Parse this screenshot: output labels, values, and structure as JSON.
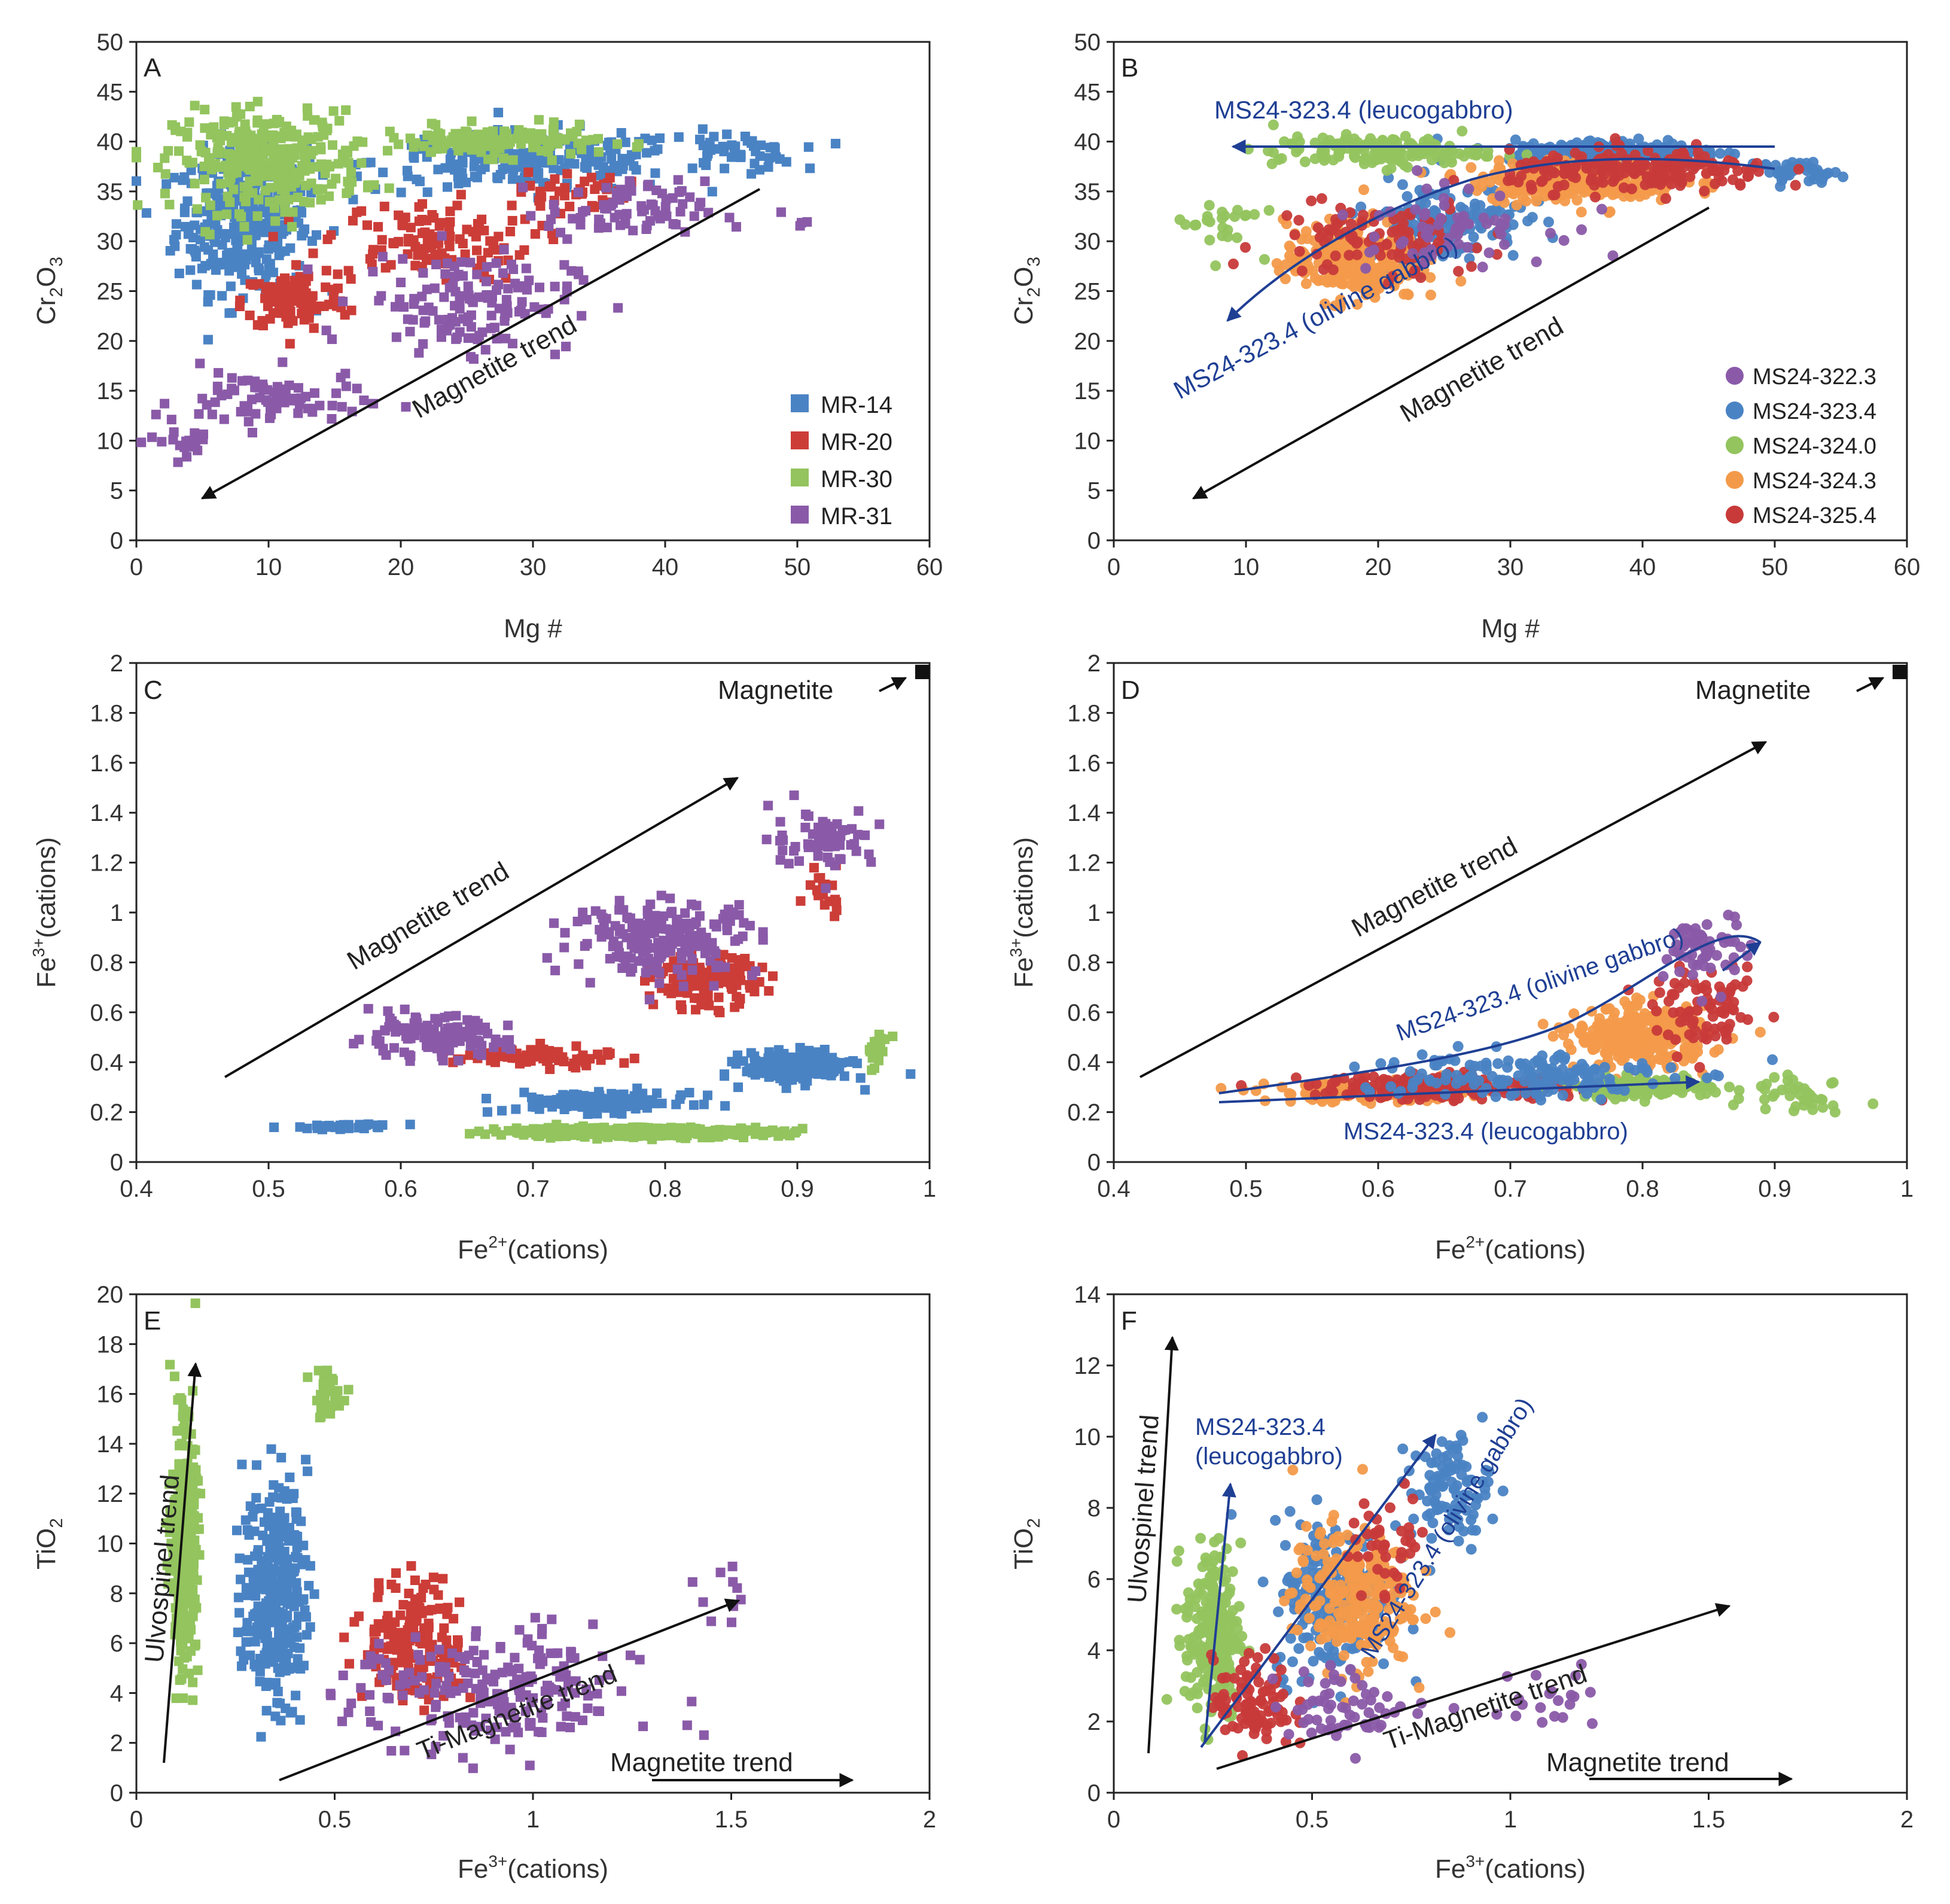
{
  "colors": {
    "MR-14": "#4a83c4",
    "MR-20": "#cc3d38",
    "MR-30": "#93c45e",
    "MR-31": "#8a5aa8",
    "MS24-322.3": "#8a5aa8",
    "MS24-323.4": "#4a83c4",
    "MS24-324.0": "#93c45e",
    "MS24-324.3": "#f39a4a",
    "MS24-325.4": "#c83a3a",
    "annotation_blue": "#1f3f94",
    "black": "#111111"
  },
  "chart_data": [
    {
      "type": "scatter",
      "panel": "A",
      "xlabel": "Mg #",
      "ylabel": "Cr2O3",
      "xlim": [
        0,
        60
      ],
      "ylim": [
        0,
        50
      ],
      "xticks": [
        0,
        10,
        20,
        30,
        40,
        50,
        60
      ],
      "yticks": [
        0,
        5,
        10,
        15,
        20,
        25,
        30,
        35,
        40,
        45,
        50
      ],
      "legend": [
        "MR-14",
        "MR-20",
        "MR-30",
        "MR-31"
      ],
      "legend_position": "bottom-right",
      "marker": "square",
      "annotations": [
        {
          "text": "Magnetite trend",
          "color": "black"
        }
      ],
      "series": [
        {
          "name": "MR-14",
          "clusters": [
            [
              8,
              32,
              5,
              7,
              320
            ],
            [
              30,
              38,
              12,
              3,
              200
            ],
            [
              45,
              39,
              5,
              2,
              50
            ]
          ]
        },
        {
          "name": "MR-20",
          "clusters": [
            [
              12,
              24,
              4,
              3,
              100
            ],
            [
              22,
              30,
              8,
              4,
              120
            ],
            [
              33,
              35,
              4,
              2,
              40
            ]
          ]
        },
        {
          "name": "MR-30",
          "clusters": [
            [
              10,
              38,
              7,
              5,
              320
            ],
            [
              27,
              40,
              8,
              1.5,
              150
            ]
          ]
        },
        {
          "name": "MR-31",
          "clusters": [
            [
              10,
              14,
              7,
              3,
              80
            ],
            [
              25,
              24,
              8,
              5,
              140
            ],
            [
              37,
              33,
              6,
              3,
              80
            ],
            [
              4,
              10,
              3,
              2,
              20
            ],
            [
              50,
              32,
              1,
              1,
              4
            ]
          ]
        }
      ],
      "lines": [
        {
          "from": [
            47,
            35
          ],
          "to": [
            5,
            4.5
          ],
          "color": "black"
        }
      ]
    },
    {
      "type": "scatter",
      "panel": "B",
      "xlabel": "Mg #",
      "ylabel": "Cr2O3",
      "xlim": [
        0,
        60
      ],
      "ylim": [
        0,
        50
      ],
      "xticks": [
        0,
        10,
        20,
        30,
        40,
        50,
        60
      ],
      "yticks": [
        0,
        5,
        10,
        15,
        20,
        25,
        30,
        35,
        40,
        45,
        50
      ],
      "legend": [
        "MS24-322.3",
        "MS24-323.4",
        "MS24-324.0",
        "MS24-324.3",
        "MS24-325.4"
      ],
      "legend_position": "bottom-right",
      "marker": "circle",
      "annotations": [
        {
          "text": "MS24-323.4 (leucogabbro)",
          "color": "blue"
        },
        {
          "text": "MS24-323.4 (olivine gabbro)",
          "color": "blue"
        },
        {
          "text": "Magnetite trend",
          "color": "black"
        }
      ],
      "series": [
        {
          "name": "MS24-323.4",
          "clusters": [
            [
              38,
              39,
              8,
              1.2,
              200
            ],
            [
              25,
              32,
              6,
              4,
              150
            ],
            [
              52,
              37,
              3,
              1,
              40
            ]
          ]
        },
        {
          "name": "MS24-324.0",
          "clusters": [
            [
              20,
              39,
              8,
              1.5,
              150
            ],
            [
              8,
              32,
              3,
              3,
              25
            ]
          ]
        },
        {
          "name": "MS24-324.3",
          "clusters": [
            [
              18,
              28,
              5,
              4,
              250
            ],
            [
              35,
              36,
              8,
              2,
              250
            ]
          ]
        },
        {
          "name": "MS24-325.4",
          "clusters": [
            [
              40,
              37,
              10,
              2,
              200
            ],
            [
              20,
              30,
              8,
              4,
              100
            ]
          ]
        },
        {
          "name": "MS24-322.3",
          "clusters": [
            [
              25,
              32,
              8,
              4,
              60
            ]
          ]
        }
      ],
      "lines": [
        {
          "from": [
            50,
            39.8
          ],
          "to": [
            9,
            39.8
          ],
          "color": "blue"
        },
        {
          "path": [
            [
              50,
              37.5
            ],
            [
              42,
              38
            ],
            [
              30,
              36
            ],
            [
              20,
              32
            ],
            [
              13,
              26
            ],
            [
              8.5,
              22
            ]
          ],
          "color": "blue"
        },
        {
          "from": [
            45,
            33.5
          ],
          "to": [
            6,
            4.5
          ],
          "color": "black"
        }
      ]
    },
    {
      "type": "scatter",
      "panel": "C",
      "xlabel": "Fe2+(cations)",
      "ylabel": "Fe3+(cations)",
      "xlim": [
        0.4,
        1
      ],
      "ylim": [
        0,
        2
      ],
      "xticks": [
        0.4,
        0.5,
        0.6,
        0.7,
        0.8,
        0.9,
        1
      ],
      "yticks": [
        0,
        0.2,
        0.4,
        0.6,
        0.8,
        1,
        1.2,
        1.4,
        1.6,
        1.8,
        2
      ],
      "marker": "square",
      "annotations": [
        {
          "text": "Magnetite",
          "color": "black"
        },
        {
          "text": "Magnetite trend",
          "color": "black"
        }
      ],
      "series": [
        {
          "name": "MR-14",
          "clusters": [
            [
              0.56,
              0.14,
              0.04,
              0.01,
              30
            ],
            [
              0.75,
              0.24,
              0.07,
              0.04,
              120
            ],
            [
              0.9,
              0.38,
              0.04,
              0.06,
              200
            ]
          ]
        },
        {
          "name": "MR-20",
          "clusters": [
            [
              0.7,
              0.42,
              0.06,
              0.04,
              80
            ],
            [
              0.83,
              0.72,
              0.04,
              0.1,
              150
            ],
            [
              0.92,
              1.1,
              0.02,
              0.1,
              20
            ]
          ]
        },
        {
          "name": "MR-30",
          "clusters": [
            [
              0.78,
              0.12,
              0.1,
              0.02,
              400
            ],
            [
              0.96,
              0.45,
              0.01,
              0.08,
              20
            ]
          ]
        },
        {
          "name": "MR-31",
          "clusters": [
            [
              0.62,
              0.5,
              0.06,
              0.08,
              120
            ],
            [
              0.8,
              0.9,
              0.07,
              0.15,
              200
            ],
            [
              0.92,
              1.3,
              0.04,
              0.12,
              60
            ]
          ]
        }
      ],
      "endmember": {
        "label": "Magnetite",
        "x": 1,
        "y": 1.97
      },
      "lines": [
        {
          "from": [
            0.47,
            0.34
          ],
          "to": [
            0.85,
            1.54
          ],
          "color": "black"
        },
        {
          "from": [
            0.95,
            1.89
          ],
          "to": [
            0.99,
            1.95
          ],
          "color": "black"
        }
      ]
    },
    {
      "type": "scatter",
      "panel": "D",
      "xlabel": "Fe2+(cations)",
      "ylabel": "Fe3+(cations)",
      "xlim": [
        0.4,
        1
      ],
      "ylim": [
        0,
        2
      ],
      "xticks": [
        0.4,
        0.5,
        0.6,
        0.7,
        0.8,
        0.9,
        1
      ],
      "yticks": [
        0,
        0.2,
        0.4,
        0.6,
        0.8,
        1,
        1.2,
        1.4,
        1.6,
        1.8,
        2
      ],
      "marker": "circle",
      "annotations": [
        {
          "text": "Magnetite",
          "color": "black"
        },
        {
          "text": "Magnetite trend",
          "color": "black"
        },
        {
          "text": "MS24-323.4 (olivine gabbro)",
          "color": "blue"
        },
        {
          "text": "MS24-323.4 (leucogabbro)",
          "color": "blue"
        }
      ],
      "series": [
        {
          "name": "MS24-324.3",
          "clusters": [
            [
              0.8,
              0.5,
              0.05,
              0.12,
              300
            ],
            [
              0.6,
              0.28,
              0.08,
              0.04,
              200
            ]
          ]
        },
        {
          "name": "MS24-325.4",
          "clusters": [
            [
              0.65,
              0.3,
              0.1,
              0.05,
              200
            ],
            [
              0.85,
              0.6,
              0.04,
              0.15,
              80
            ]
          ]
        },
        {
          "name": "MS24-324.0",
          "clusters": [
            [
              0.8,
              0.3,
              0.05,
              0.04,
              150
            ],
            [
              0.92,
              0.28,
              0.04,
              0.08,
              40
            ]
          ]
        },
        {
          "name": "MS24-323.4",
          "clusters": [
            [
              0.7,
              0.35,
              0.12,
              0.1,
              150
            ]
          ]
        },
        {
          "name": "MS24-322.3",
          "clusters": [
            [
              0.85,
              0.85,
              0.03,
              0.15,
              60
            ]
          ]
        }
      ],
      "endmember": {
        "label": "Magnetite",
        "x": 1,
        "y": 1.97
      },
      "lines": [
        {
          "from": [
            0.42,
            0.34
          ],
          "to": [
            0.88,
            1.68
          ],
          "color": "black"
        },
        {
          "from": [
            0.95,
            1.89
          ],
          "to": [
            0.99,
            1.95
          ],
          "color": "black"
        },
        {
          "path": [
            [
              0.48,
              0.27
            ],
            [
              0.65,
              0.38
            ],
            [
              0.78,
              0.56
            ],
            [
              0.88,
              0.88
            ]
          ],
          "color": "blue"
        },
        {
          "from": [
            0.48,
            0.24
          ],
          "to": [
            0.85,
            0.32
          ],
          "color": "blue"
        }
      ]
    },
    {
      "type": "scatter",
      "panel": "E",
      "xlabel": "Fe3+(cations)",
      "ylabel": "TiO2",
      "xlim": [
        0,
        2
      ],
      "ylim": [
        0,
        20
      ],
      "xticks": [
        0,
        0.5,
        1,
        1.5,
        2
      ],
      "yticks": [
        0,
        2,
        4,
        6,
        8,
        10,
        12,
        14,
        16,
        18,
        20
      ],
      "marker": "square",
      "annotations": [
        {
          "text": "Ulvospinel trend",
          "color": "black"
        },
        {
          "text": "Ti-Magnetite trend",
          "color": "black"
        },
        {
          "text": "Magnetite trend",
          "color": "black"
        }
      ],
      "series": [
        {
          "name": "MR-30",
          "clusters": [
            [
              0.12,
              10,
              0.03,
              4.5,
              400
            ],
            [
              0.48,
              16,
              0.04,
              1,
              30
            ]
          ]
        },
        {
          "name": "MR-14",
          "clusters": [
            [
              0.35,
              8,
              0.08,
              4.5,
              300
            ]
          ]
        },
        {
          "name": "MR-20",
          "clusters": [
            [
              0.7,
              6,
              0.12,
              2.5,
              180
            ]
          ]
        },
        {
          "name": "MR-31",
          "clusters": [
            [
              0.9,
              4,
              0.35,
              2.5,
              220
            ],
            [
              1.45,
              7.5,
              0.08,
              1.5,
              10
            ]
          ]
        }
      ],
      "lines": [
        {
          "from": [
            0.07,
            1.2
          ],
          "to": [
            0.15,
            17.2
          ],
          "color": "black"
        },
        {
          "from": [
            0.36,
            0.5
          ],
          "to": [
            1.52,
            7.7
          ],
          "color": "black"
        },
        {
          "from": [
            1.3,
            0.5
          ],
          "to": [
            1.8,
            0.5
          ],
          "color": "black"
        }
      ]
    },
    {
      "type": "scatter",
      "panel": "F",
      "xlabel": "Fe3+(cations)",
      "ylabel": "TiO2",
      "xlim": [
        0,
        2
      ],
      "ylim": [
        0,
        14
      ],
      "xticks": [
        0,
        0.5,
        1,
        1.5,
        2
      ],
      "yticks": [
        0,
        2,
        4,
        6,
        8,
        10,
        12,
        14
      ],
      "marker": "circle",
      "annotations": [
        {
          "text": "Ulvospinel trend",
          "color": "black"
        },
        {
          "text": "MS24-323.4",
          "color": "blue"
        },
        {
          "text": "(leucogabbro)",
          "color": "blue"
        },
        {
          "text": "MS24-323.4 (olivine gabbro)",
          "color": "blue"
        },
        {
          "text": "Ti-Magnetite trend",
          "color": "black"
        },
        {
          "text": "Magnetite trend",
          "color": "black"
        }
      ],
      "series": [
        {
          "name": "MS24-324.0",
          "clusters": [
            [
              0.25,
              4.5,
              0.07,
              2.5,
              220
            ]
          ]
        },
        {
          "name": "MS24-323.4",
          "clusters": [
            [
              0.55,
              5.5,
              0.15,
              2.2,
              200
            ],
            [
              0.85,
              8.5,
              0.1,
              1.5,
              100
            ]
          ]
        },
        {
          "name": "MS24-324.3",
          "clusters": [
            [
              0.6,
              5.5,
              0.15,
              2,
              250
            ]
          ]
        },
        {
          "name": "MS24-325.4",
          "clusters": [
            [
              0.35,
              2.5,
              0.1,
              1.3,
              100
            ],
            [
              0.7,
              7,
              0.1,
              1.5,
              40
            ]
          ]
        },
        {
          "name": "MS24-322.3",
          "clusters": [
            [
              0.6,
              2.5,
              0.2,
              1,
              60
            ],
            [
              1.1,
              2.5,
              0.15,
              1.2,
              20
            ]
          ]
        }
      ],
      "lines": [
        {
          "from": [
            0.09,
            1.1
          ],
          "to": [
            0.15,
            12.8
          ],
          "color": "black"
        },
        {
          "from": [
            0.23,
            1.4
          ],
          "to": [
            0.3,
            8.7
          ],
          "color": "blue"
        },
        {
          "from": [
            0.22,
            1.3
          ],
          "to": [
            0.84,
            10.1
          ],
          "color": "blue"
        },
        {
          "from": [
            0.26,
            0.6
          ],
          "to": [
            1.58,
            5.2
          ],
          "color": "black"
        },
        {
          "from": [
            1.2,
            0.35
          ],
          "to": [
            1.7,
            0.35
          ],
          "color": "black"
        }
      ]
    }
  ]
}
